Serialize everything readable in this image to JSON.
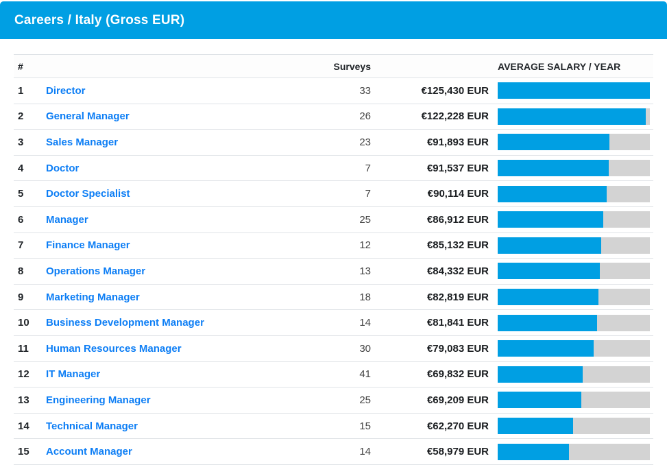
{
  "header_bar": {
    "title": "Careers / Italy (Gross EUR)"
  },
  "table": {
    "columns": {
      "rank": "#",
      "surveys": "Surveys",
      "avg_salary": "AVERAGE SALARY / YEAR"
    },
    "max_salary": 125430,
    "rows": [
      {
        "rank": "1",
        "career": "Director",
        "surveys": "33",
        "salary": "€125,430 EUR",
        "salary_value": 125430
      },
      {
        "rank": "2",
        "career": "General Manager",
        "surveys": "26",
        "salary": "€122,228 EUR",
        "salary_value": 122228
      },
      {
        "rank": "3",
        "career": "Sales Manager",
        "surveys": "23",
        "salary": "€91,893 EUR",
        "salary_value": 91893
      },
      {
        "rank": "4",
        "career": "Doctor",
        "surveys": "7",
        "salary": "€91,537 EUR",
        "salary_value": 91537
      },
      {
        "rank": "5",
        "career": "Doctor Specialist",
        "surveys": "7",
        "salary": "€90,114 EUR",
        "salary_value": 90114
      },
      {
        "rank": "6",
        "career": "Manager",
        "surveys": "25",
        "salary": "€86,912 EUR",
        "salary_value": 86912
      },
      {
        "rank": "7",
        "career": "Finance Manager",
        "surveys": "12",
        "salary": "€85,132 EUR",
        "salary_value": 85132
      },
      {
        "rank": "8",
        "career": "Operations Manager",
        "surveys": "13",
        "salary": "€84,332 EUR",
        "salary_value": 84332
      },
      {
        "rank": "9",
        "career": "Marketing Manager",
        "surveys": "18",
        "salary": "€82,819 EUR",
        "salary_value": 82819
      },
      {
        "rank": "10",
        "career": "Business Development Manager",
        "surveys": "14",
        "salary": "€81,841 EUR",
        "salary_value": 81841
      },
      {
        "rank": "11",
        "career": "Human Resources Manager",
        "surveys": "30",
        "salary": "€79,083 EUR",
        "salary_value": 79083
      },
      {
        "rank": "12",
        "career": "IT Manager",
        "surveys": "41",
        "salary": "€69,832 EUR",
        "salary_value": 69832
      },
      {
        "rank": "13",
        "career": "Engineering Manager",
        "surveys": "25",
        "salary": "€69,209 EUR",
        "salary_value": 69209
      },
      {
        "rank": "14",
        "career": "Technical Manager",
        "surveys": "15",
        "salary": "€62,270 EUR",
        "salary_value": 62270
      },
      {
        "rank": "15",
        "career": "Account Manager",
        "surveys": "14",
        "salary": "€58,979 EUR",
        "salary_value": 58979
      }
    ]
  },
  "colors": {
    "accent_cyan": "#009FE3",
    "bar_track_gray": "#D3D3D3",
    "link_blue": "#0D7EF5",
    "row_border": "#DEE2E6"
  }
}
